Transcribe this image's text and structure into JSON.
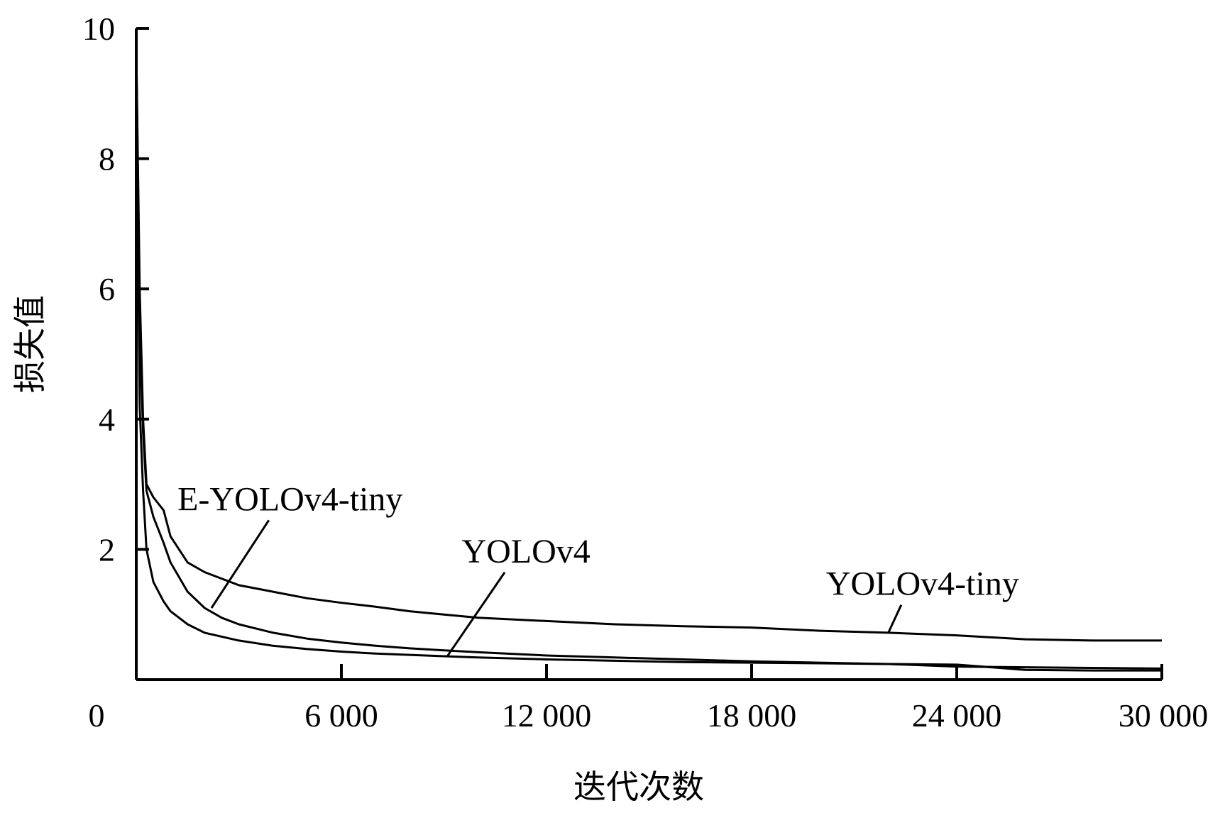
{
  "chart_data": {
    "type": "line",
    "title": "",
    "xlabel": "迭代次数",
    "ylabel": "损失值",
    "xlim": [
      0,
      30000
    ],
    "ylim": [
      0,
      10
    ],
    "x_ticks": [
      0,
      6000,
      12000,
      18000,
      24000,
      30000
    ],
    "x_tick_labels": [
      "0",
      "6 000",
      "12 000",
      "18 000",
      "24 000",
      "30 000"
    ],
    "y_ticks": [
      0,
      2,
      4,
      6,
      8,
      10
    ],
    "y_tick_labels": [
      "",
      "2",
      "4",
      "6",
      "8",
      "10"
    ],
    "grid": false,
    "legend": "none",
    "series": [
      {
        "name": "YOLOv4-tiny",
        "x": [
          0,
          100,
          200,
          300,
          500,
          800,
          1000,
          1500,
          2000,
          3000,
          4000,
          5000,
          6000,
          7000,
          8000,
          9000,
          10000,
          12000,
          14000,
          16000,
          18000,
          20000,
          22000,
          24000,
          26000,
          28000,
          30000
        ],
        "y": [
          9.7,
          6.0,
          4.0,
          3.0,
          2.8,
          2.6,
          2.2,
          1.8,
          1.65,
          1.45,
          1.35,
          1.25,
          1.18,
          1.12,
          1.05,
          1.0,
          0.95,
          0.9,
          0.85,
          0.82,
          0.8,
          0.75,
          0.72,
          0.68,
          0.62,
          0.6,
          0.6
        ]
      },
      {
        "name": "E-YOLOv4-tiny",
        "x": [
          0,
          100,
          200,
          300,
          500,
          800,
          1000,
          1500,
          2000,
          2500,
          3000,
          4000,
          5000,
          6000,
          7000,
          8000,
          9000,
          10000,
          12000,
          14000,
          16000,
          18000,
          20000,
          22000,
          24000,
          26000,
          28000,
          30000
        ],
        "y": [
          9.7,
          5.5,
          3.8,
          2.9,
          2.5,
          2.1,
          1.8,
          1.35,
          1.1,
          0.95,
          0.85,
          0.72,
          0.63,
          0.57,
          0.52,
          0.48,
          0.45,
          0.42,
          0.37,
          0.34,
          0.31,
          0.28,
          0.26,
          0.24,
          0.2,
          0.19,
          0.18,
          0.17
        ]
      },
      {
        "name": "YOLOv4",
        "x": [
          0,
          100,
          200,
          300,
          500,
          800,
          1000,
          1500,
          2000,
          3000,
          4000,
          5000,
          6000,
          7000,
          8000,
          9000,
          10000,
          12000,
          14000,
          16000,
          18000,
          20000,
          22000,
          24000,
          26000,
          28000,
          30000
        ],
        "y": [
          9.7,
          4.2,
          2.9,
          2.0,
          1.5,
          1.2,
          1.05,
          0.85,
          0.72,
          0.6,
          0.52,
          0.47,
          0.43,
          0.4,
          0.38,
          0.36,
          0.34,
          0.31,
          0.29,
          0.27,
          0.26,
          0.25,
          0.24,
          0.23,
          0.15,
          0.14,
          0.14
        ]
      }
    ],
    "annotations": [
      {
        "text": "E-YOLOv4-tiny",
        "series": "E-YOLOv4-tiny",
        "point_x": 2200,
        "point_y": 1.1,
        "label_x": 4500,
        "label_y": 2.6
      },
      {
        "text": "YOLOv4",
        "series": "YOLOv4",
        "point_x": 9100,
        "point_y": 0.36,
        "label_x": 11400,
        "label_y": 1.8
      },
      {
        "text": "YOLOv4-tiny",
        "series": "YOLOv4-tiny",
        "point_x": 22000,
        "point_y": 0.72,
        "label_x": 23000,
        "label_y": 1.3
      }
    ]
  }
}
